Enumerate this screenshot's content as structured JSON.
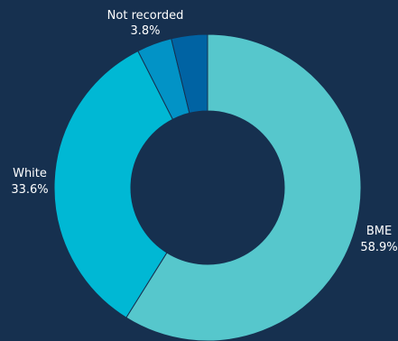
{
  "chart_data": {
    "type": "pie",
    "donut": true,
    "title": "",
    "legend": "none",
    "slices": [
      {
        "name": "BME",
        "value": 58.9,
        "value_label": "58.9%",
        "color": "#56c7cc"
      },
      {
        "name": "White",
        "value": 33.6,
        "value_label": "33.6%",
        "color": "#00b8d4"
      },
      {
        "name": "",
        "value": 3.7,
        "value_label": "",
        "color": "#0293c6"
      },
      {
        "name": "Not recorded",
        "value": 3.8,
        "value_label": "3.8%",
        "color": "#0063a3"
      }
    ]
  }
}
